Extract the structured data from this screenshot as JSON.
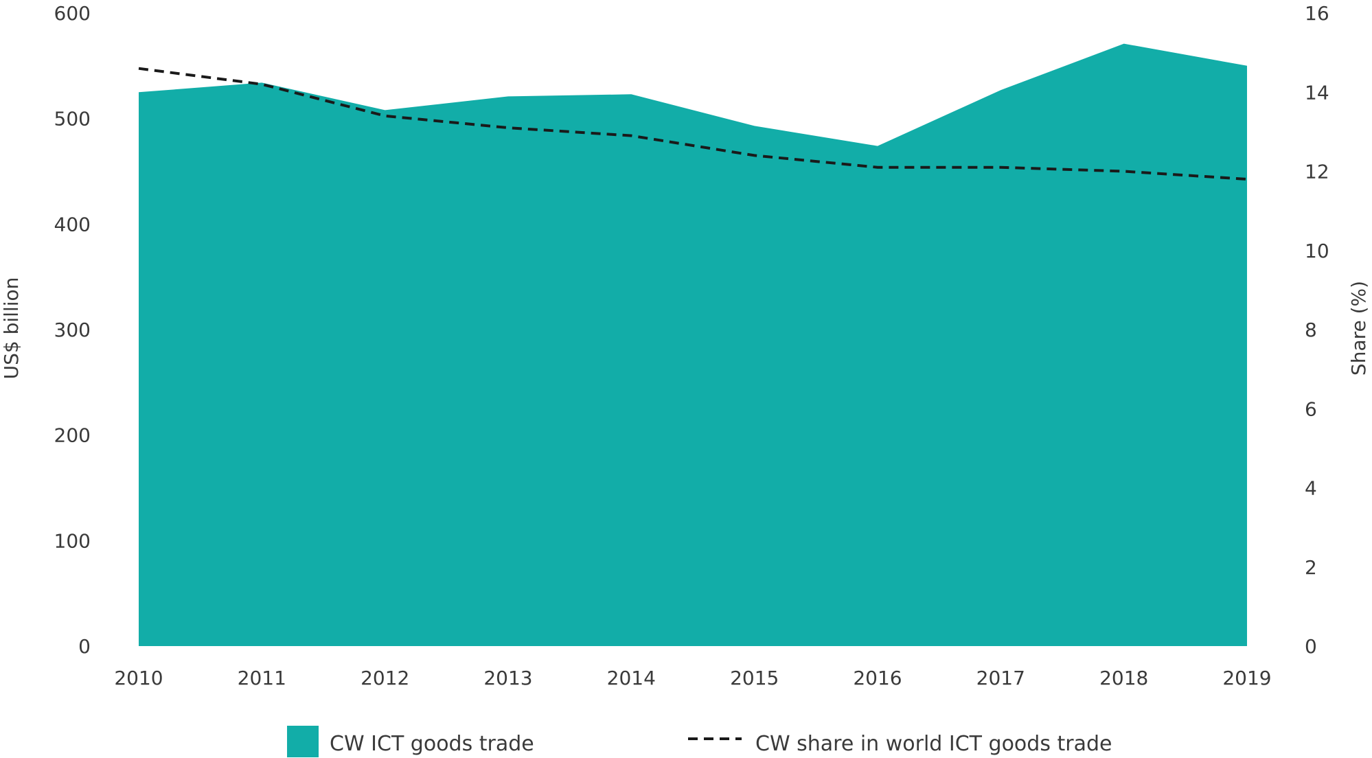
{
  "chart_data": {
    "type": "area",
    "x": [
      2010,
      2011,
      2012,
      2013,
      2014,
      2015,
      2016,
      2017,
      2018,
      2019
    ],
    "x_tick_labels": [
      "2010",
      "2011",
      "2012",
      "2013",
      "2014",
      "2015",
      "2016",
      "2017",
      "2018",
      "2019"
    ],
    "series": [
      {
        "name": "CW ICT goods trade",
        "kind": "area",
        "axis": "left",
        "color": "#12ada8",
        "values": [
          525,
          534,
          508,
          521,
          523,
          493,
          474,
          527,
          571,
          550
        ]
      },
      {
        "name": "CW share in world ICT goods trade",
        "kind": "line",
        "style": "dashed",
        "axis": "right",
        "color": "#1a1a1a",
        "values": [
          14.6,
          14.2,
          13.4,
          13.1,
          12.9,
          12.4,
          12.1,
          12.1,
          12.0,
          11.8
        ]
      }
    ],
    "title": "",
    "xlabel": "",
    "ylabel": "US$ billion",
    "ylabel_right": "Share (%)",
    "ylim": [
      0,
      600
    ],
    "ylim_right": [
      0,
      16
    ],
    "y_ticks": [
      0,
      100,
      200,
      300,
      400,
      500,
      600
    ],
    "y_ticks_right": [
      0,
      2,
      4,
      6,
      8,
      10,
      12,
      14,
      16
    ],
    "grid": false,
    "legend_position": "bottom"
  }
}
